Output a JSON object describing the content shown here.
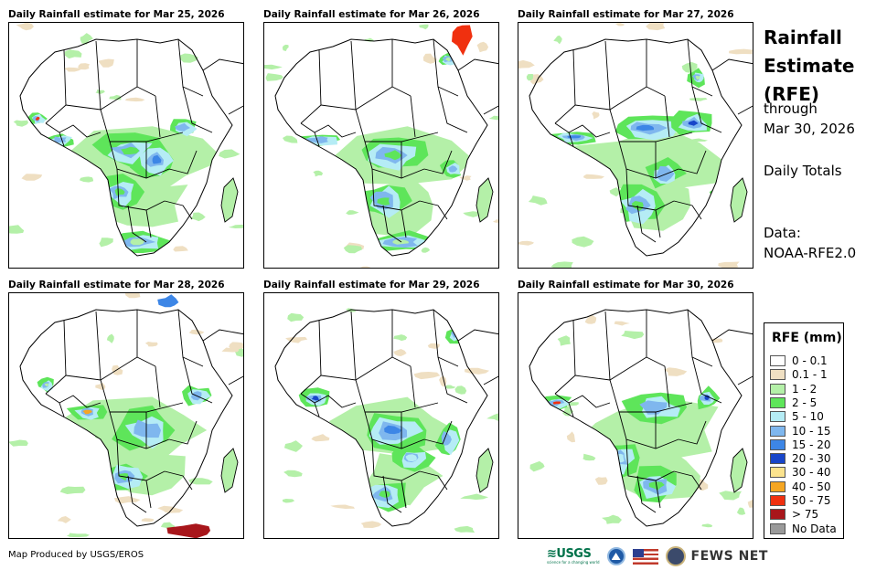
{
  "panels": [
    {
      "title": "Daily Rainfall estimate for Mar 25, 2026"
    },
    {
      "title": "Daily Rainfall estimate for Mar 26, 2026"
    },
    {
      "title": "Daily Rainfall estimate for Mar 27, 2026"
    },
    {
      "title": "Daily Rainfall estimate for Mar 28, 2026"
    },
    {
      "title": "Daily Rainfall estimate for Mar 29, 2026"
    },
    {
      "title": "Daily Rainfall estimate for Mar 30, 2026"
    }
  ],
  "side": {
    "title_line1": "Rainfall",
    "title_line2": "Estimate",
    "title_line3": "(RFE)",
    "through": "through",
    "date": "Mar 30, 2026",
    "totals": "Daily Totals",
    "data_label": "Data:",
    "data_source": "NOAA-RFE2.0"
  },
  "legend": {
    "title": "RFE (mm)",
    "items": [
      {
        "label": "0 - 0.1",
        "color": "#ffffff"
      },
      {
        "label": "0.1 - 1",
        "color": "#efdfc2"
      },
      {
        "label": "1 - 2",
        "color": "#b4f0a8"
      },
      {
        "label": "2 - 5",
        "color": "#5ee55a"
      },
      {
        "label": "5 - 10",
        "color": "#b5ecf5"
      },
      {
        "label": "10 - 15",
        "color": "#7fb7ee"
      },
      {
        "label": "15 - 20",
        "color": "#3d86e6"
      },
      {
        "label": "20 - 30",
        "color": "#1846c9"
      },
      {
        "label": "30 - 40",
        "color": "#fbe38e"
      },
      {
        "label": "40 - 50",
        "color": "#f5a623"
      },
      {
        "label": "50 - 75",
        "color": "#f0300f"
      },
      {
        "label": "> 75",
        "color": "#a8161b"
      },
      {
        "label": "No Data",
        "color": "#9a9a9a"
      }
    ]
  },
  "footer": {
    "credit": "Map Produced by USGS/EROS",
    "usgs": "≋USGS",
    "usgs_tagline": "science for a changing world",
    "fews": "FEWS NET"
  }
}
